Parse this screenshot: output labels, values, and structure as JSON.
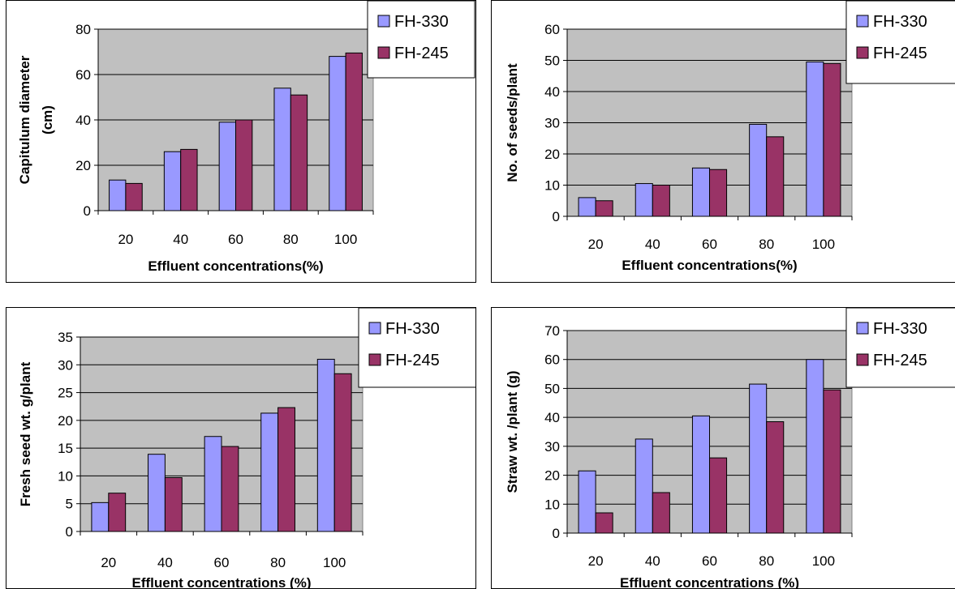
{
  "series_colors": [
    "#9999ff",
    "#993366"
  ],
  "plot_background": "#c0c0c0",
  "chart_data": [
    {
      "type": "bar",
      "categories": [
        "20",
        "40",
        "60",
        "80",
        "100"
      ],
      "series": [
        {
          "name": "FH-330",
          "values": [
            13.5,
            26,
            39,
            54,
            68
          ]
        },
        {
          "name": "FH-245",
          "values": [
            12,
            27,
            40,
            51,
            69.5
          ]
        }
      ],
      "xlabel": "Effluent concentrations(%)",
      "ylabel": "Capitulum diameter (cm)",
      "ylabel_lines": [
        "Capitulum diameter",
        "(cm)"
      ],
      "ylim": [
        0,
        80
      ],
      "yticks": [
        0,
        20,
        40,
        60,
        80
      ],
      "grid": true,
      "legend": "top-right"
    },
    {
      "type": "bar",
      "categories": [
        "20",
        "40",
        "60",
        "80",
        "100"
      ],
      "series": [
        {
          "name": "FH-330",
          "values": [
            6,
            10.5,
            15.5,
            29.5,
            49.5
          ]
        },
        {
          "name": "FH-245",
          "values": [
            5,
            10,
            15,
            25.5,
            49
          ]
        }
      ],
      "xlabel": "Effluent concentrations(%)",
      "ylabel": "No. of seeds/plant",
      "ylabel_lines": [
        "No. of seeds/plant"
      ],
      "ylim": [
        0,
        60
      ],
      "yticks": [
        0,
        10,
        20,
        30,
        40,
        50,
        60
      ],
      "grid": true,
      "legend": "top-right"
    },
    {
      "type": "bar",
      "categories": [
        "20",
        "40",
        "60",
        "80",
        "100"
      ],
      "series": [
        {
          "name": "FH-330",
          "values": [
            5.2,
            13.9,
            17.1,
            21.3,
            31
          ]
        },
        {
          "name": "FH-245",
          "values": [
            6.9,
            9.7,
            15.3,
            22.3,
            28.4
          ]
        }
      ],
      "xlabel": "Effluent concentrations (%)",
      "ylabel": "Fresh seed wt. g/plant",
      "ylabel_lines": [
        "Fresh seed wt. g/plant"
      ],
      "ylim": [
        0,
        35
      ],
      "yticks": [
        0,
        5,
        10,
        15,
        20,
        25,
        30,
        35
      ],
      "grid": true,
      "legend": "top-right"
    },
    {
      "type": "bar",
      "categories": [
        "20",
        "40",
        "60",
        "80",
        "100"
      ],
      "series": [
        {
          "name": "FH-330",
          "values": [
            21.5,
            32.5,
            40.5,
            51.5,
            60
          ]
        },
        {
          "name": "FH-245",
          "values": [
            7,
            14,
            26,
            38.5,
            49.5
          ]
        }
      ],
      "xlabel": "Effluent concentrations (%)",
      "ylabel": "Straw wt. /plant (g)",
      "ylabel_lines": [
        "Straw wt. /plant (g)"
      ],
      "ylim": [
        0,
        70
      ],
      "yticks": [
        0,
        10,
        20,
        30,
        40,
        50,
        60,
        70
      ],
      "grid": true,
      "legend": "top-right"
    }
  ]
}
